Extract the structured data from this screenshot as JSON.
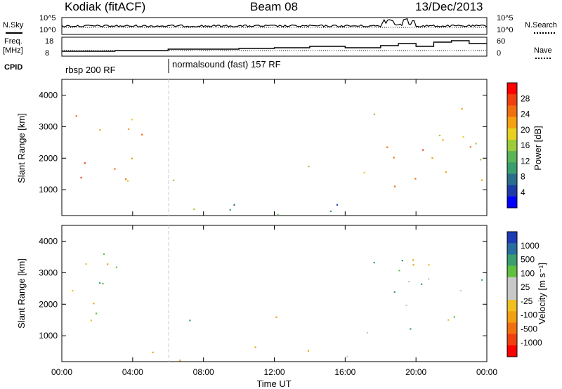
{
  "header": {
    "radar": "Kodiak (fitACF)",
    "beam": "Beam 08",
    "date": "13/Dec/2013"
  },
  "strip": {
    "nsky_label": "N.Sky",
    "nsearch_label": "N.Search",
    "nsky_ticks": [
      "10^5",
      "10^0"
    ],
    "nsearch_ticks": [
      "10^5",
      "10^0"
    ],
    "freq_label": "Freq.",
    "freq_unit": "[MHz]",
    "freq_ticks": [
      "18",
      "8"
    ],
    "nave_label": "Nave",
    "nave_ticks": [
      "60",
      "0"
    ],
    "cpid_label": "CPID",
    "cpid_segments": [
      "rbsp 200 RF",
      "normalsound (fast) 157 RF"
    ]
  },
  "power_panel": {
    "ylabel": "Slant Range [km]",
    "yticks": [
      "1000",
      "2000",
      "3000",
      "4000"
    ],
    "colorbar_label": "Power [dB]",
    "colorbar_ticks": [
      "4",
      "8",
      "12",
      "16",
      "20",
      "24",
      "28"
    ],
    "colorbar_colors": [
      "#0000ff",
      "#1e3ca8",
      "#2a6e8c",
      "#3a9e6e",
      "#5ab45a",
      "#9ccc3c",
      "#e8d020",
      "#f4a012",
      "#f07010",
      "#f04010",
      "#ff0000"
    ]
  },
  "velocity_panel": {
    "ylabel": "Slant Range [km]",
    "yticks": [
      "1000",
      "2000",
      "3000",
      "4000"
    ],
    "colorbar_label": "Velocity [m s⁻¹]",
    "colorbar_ticks": [
      "1000",
      "500",
      "100",
      "25",
      "-25",
      "-100",
      "-500",
      "-1000"
    ],
    "colorbar_colors": [
      "#1e3cb4",
      "#2a6ea0",
      "#3a9e6e",
      "#60c040",
      "#c8c8c8",
      "#c8c8c8",
      "#f0c020",
      "#f0a010",
      "#f07010",
      "#f04010",
      "#ff0000"
    ]
  },
  "xaxis": {
    "label": "Time UT",
    "ticks": [
      "00:00",
      "04:00",
      "08:00",
      "12:00",
      "16:00",
      "20:00",
      "00:00"
    ]
  },
  "chart_data": {
    "type": "heatmap",
    "title": "Kodiak (fitACF) Beam 08 13/Dec/2013",
    "xlabel": "Time UT",
    "ylabel": "Slant Range [km]",
    "xlim_hours": [
      0,
      24
    ],
    "ylim_km": [
      180,
      4500
    ],
    "cpid_change_hour": 6.0,
    "power_units": "dB",
    "power_range": [
      0,
      30
    ],
    "velocity_units": "m/s",
    "power_regions": [
      {
        "t0": 0.0,
        "t1": 4.5,
        "r0": 800,
        "r1": 3700,
        "level": 22
      },
      {
        "t0": 5.7,
        "t1": 7.5,
        "r0": 1150,
        "r1": 1600,
        "level": 16
      },
      {
        "t0": 10.3,
        "t1": 14.0,
        "r0": 1550,
        "r1": 2000,
        "level": 10
      },
      {
        "t0": 4.5,
        "t1": 17.5,
        "r0": 180,
        "r1": 700,
        "level": 9
      },
      {
        "t0": 17.0,
        "t1": 24.0,
        "r0": 750,
        "r1": 3600,
        "level": 21
      }
    ],
    "velocity_regions": [
      {
        "t0": 0.0,
        "t1": 4.3,
        "r0": 800,
        "r1": 3700,
        "v": 0
      },
      {
        "t0": 5.7,
        "t1": 7.5,
        "r0": 1150,
        "r1": 1600,
        "v": 150
      },
      {
        "t0": 10.3,
        "t1": 14.0,
        "r0": 1550,
        "r1": 2000,
        "v": -150
      },
      {
        "t0": 5.0,
        "t1": 17.5,
        "r0": 180,
        "r1": 700,
        "v": -60
      },
      {
        "t0": 17.0,
        "t1": 24.0,
        "r0": 750,
        "r1": 3600,
        "v": 0
      }
    ],
    "frequency_MHz_range": [
      8,
      18
    ],
    "nave_range": [
      0,
      60
    ]
  }
}
